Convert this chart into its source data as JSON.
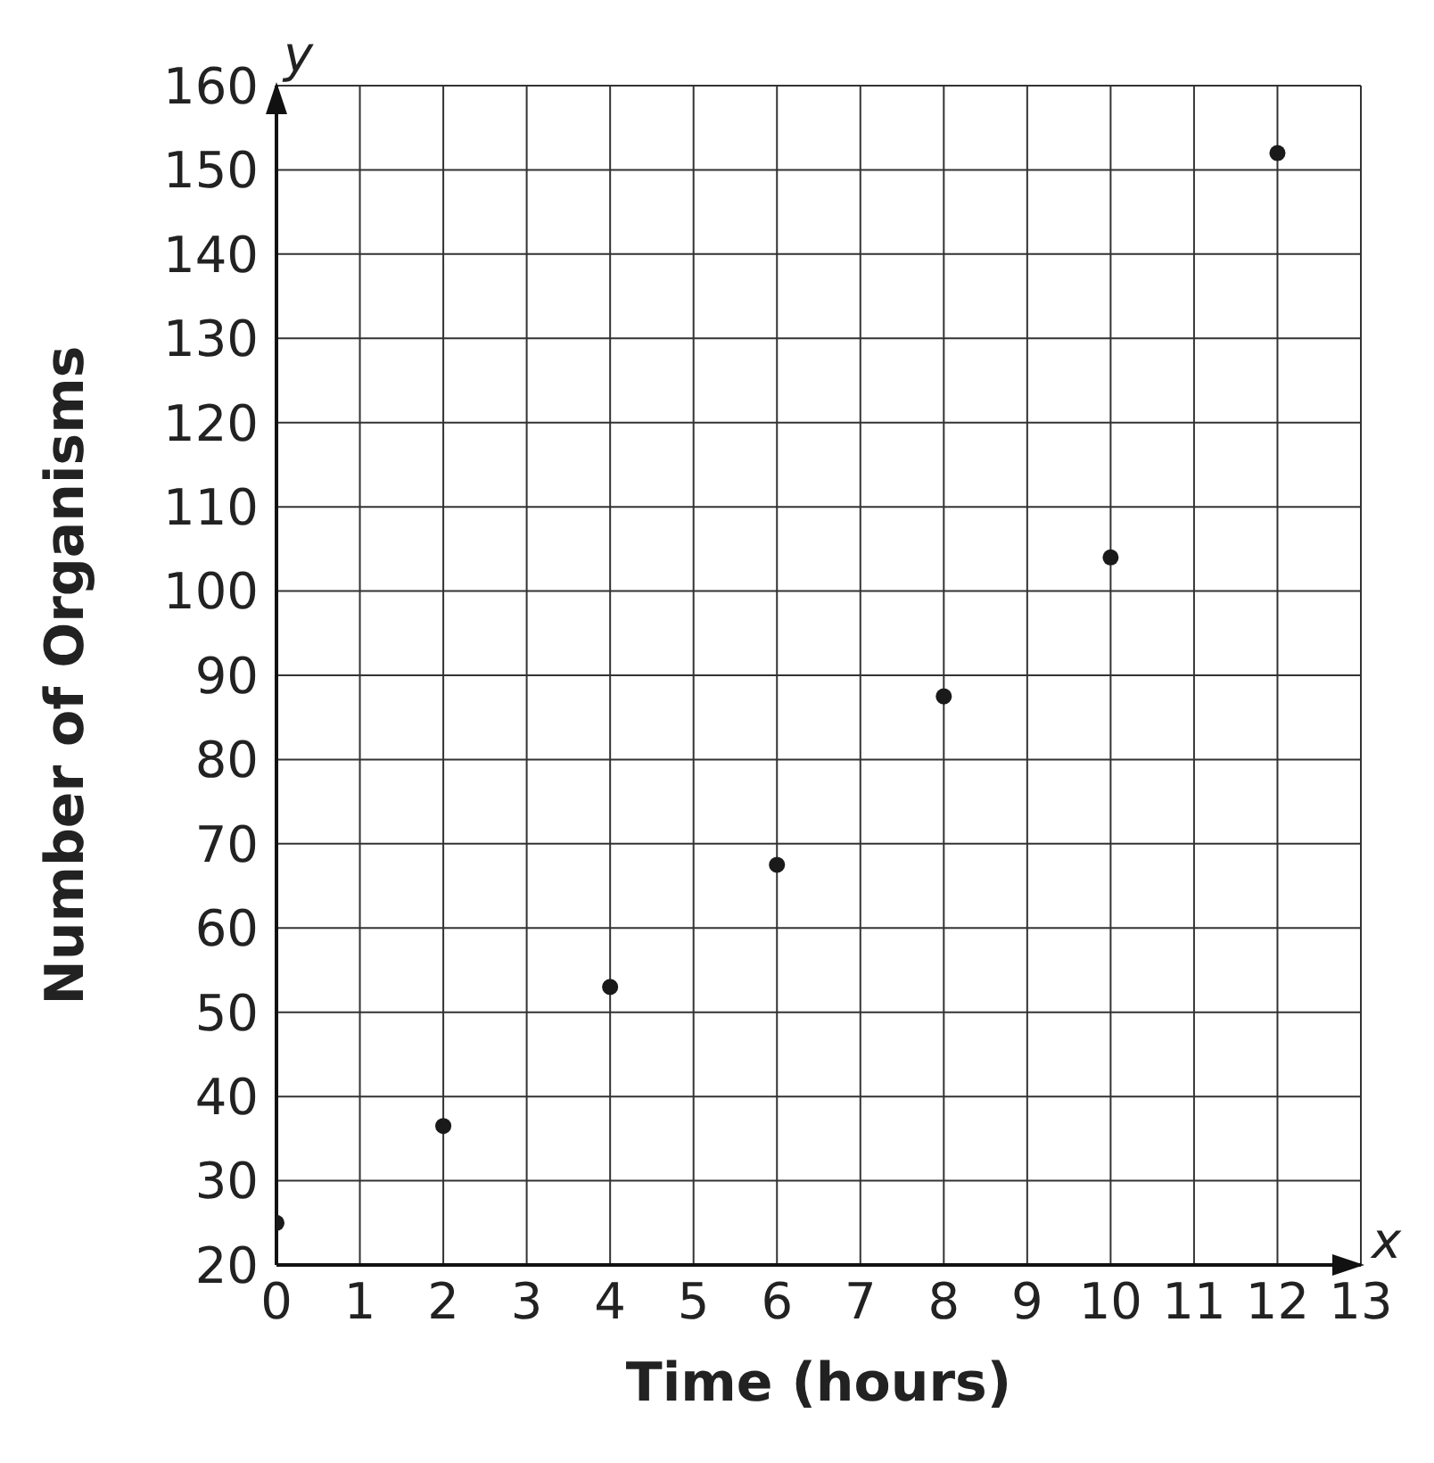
{
  "chart_data": {
    "type": "scatter",
    "xlabel": "Time (hours)",
    "ylabel": "Number of Organisms",
    "annotations": [
      "y",
      "x"
    ],
    "x": [
      0,
      2,
      4,
      6,
      8,
      10,
      12
    ],
    "values": [
      25,
      36.5,
      53,
      67.5,
      87.5,
      104,
      152
    ],
    "color": "#1a1a1a",
    "marker": "circle",
    "grid": true,
    "xlim": [
      0,
      13
    ],
    "xticks": [
      0,
      1,
      2,
      3,
      4,
      5,
      6,
      7,
      8,
      9,
      10,
      11,
      12,
      13
    ],
    "ylim": [
      20,
      160
    ],
    "yticks": [
      20,
      30,
      40,
      50,
      60,
      70,
      80,
      90,
      100,
      110,
      120,
      130,
      140,
      150,
      160
    ]
  }
}
